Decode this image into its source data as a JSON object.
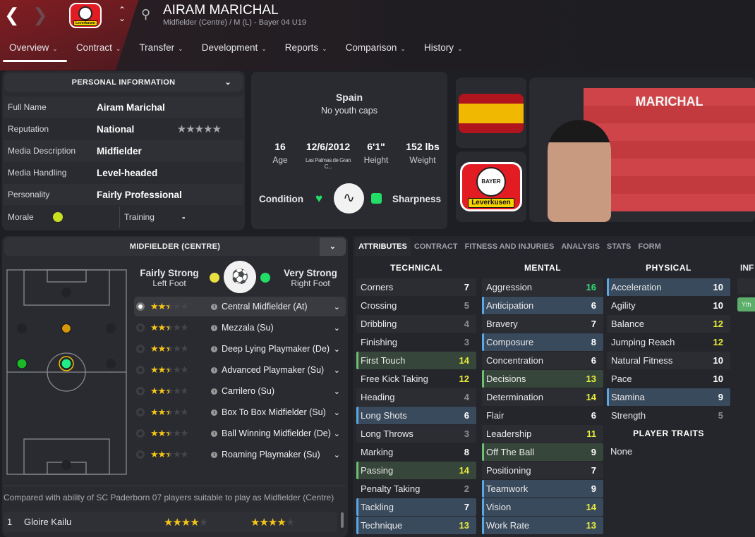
{
  "header": {
    "title": "AIRAM MARICHAL",
    "subtitle": "Midfielder (Centre) / M (L) - Bayer 04 U19",
    "back_icon": "chevron-left",
    "forward_icon": "chevron-right",
    "search_icon": "magnifier",
    "club_badge_text": "Leverkusen"
  },
  "tabs": [
    {
      "label": "Overview",
      "active": true
    },
    {
      "label": "Contract"
    },
    {
      "label": "Transfer"
    },
    {
      "label": "Development"
    },
    {
      "label": "Reports"
    },
    {
      "label": "Comparison"
    },
    {
      "label": "History"
    }
  ],
  "personal": {
    "title": "PERSONAL INFORMATION",
    "rows": [
      {
        "label": "Full Name",
        "value": "Airam Marichal"
      },
      {
        "label": "Reputation",
        "value": "National",
        "stars": 0
      },
      {
        "label": "Media Description",
        "value": "Midfielder"
      },
      {
        "label": "Media Handling",
        "value": "Level-headed"
      },
      {
        "label": "Personality",
        "value": "Fairly Professional"
      }
    ],
    "morale_label": "Morale",
    "training_label": "Training",
    "training_value": "-",
    "morale_color": "#c8e020"
  },
  "bio": {
    "nation": "Spain",
    "caps": "No youth caps",
    "age": "16",
    "age_label": "Age",
    "dob": "12/6/2012",
    "birthplace": "Las Palmas de Gran C...",
    "height": "6'1\"",
    "height_label": "Height",
    "weight": "152 lbs",
    "weight_label": "Weight",
    "condition_label": "Condition",
    "sharpness_label": "Sharpness"
  },
  "portrait": {
    "shirt_name": "MARICHAL",
    "crest_year": "1904",
    "crest_text": "BAYER",
    "crest_club": "Leverkusen"
  },
  "position": {
    "title": "MIDFIELDER (CENTRE)",
    "left_foot": "Fairly Strong",
    "left_foot_label": "Left Foot",
    "right_foot": "Very Strong",
    "right_foot_label": "Right Foot",
    "left_color": "#e8e040",
    "right_color": "#22dd66",
    "roles": [
      {
        "name": "Central Midfielder (At)",
        "stars": 2.5,
        "selected": true
      },
      {
        "name": "Mezzala (Su)",
        "stars": 2.5
      },
      {
        "name": "Deep Lying Playmaker (De)",
        "stars": 2.5
      },
      {
        "name": "Advanced Playmaker (Su)",
        "stars": 2.5
      },
      {
        "name": "Carrilero (Su)",
        "stars": 2.5
      },
      {
        "name": "Box To Box Midfielder (Su)",
        "stars": 2.5
      },
      {
        "name": "Ball Winning Midfielder (De)",
        "stars": 2.5
      },
      {
        "name": "Roaming Playmaker (Su)",
        "stars": 2.5
      }
    ],
    "compare_text": "Compared with ability of SC Paderborn 07 players suitable to play as Midfielder (Centre)",
    "compare_rows": [
      {
        "rank": "1",
        "name": "Gloire Kailu",
        "current": 4,
        "potential": 4
      }
    ]
  },
  "attr_tabs": [
    "ATTRIBUTES",
    "CONTRACT",
    "FITNESS AND INJURIES",
    "ANALYSIS",
    "STATS",
    "FORM"
  ],
  "attributes": {
    "technical": {
      "title": "TECHNICAL",
      "items": [
        {
          "name": "Corners",
          "value": 7
        },
        {
          "name": "Crossing",
          "value": 5
        },
        {
          "name": "Dribbling",
          "value": 4
        },
        {
          "name": "Finishing",
          "value": 3
        },
        {
          "name": "First Touch",
          "value": 14,
          "hl": "pref"
        },
        {
          "name": "Free Kick Taking",
          "value": 12
        },
        {
          "name": "Heading",
          "value": 4
        },
        {
          "name": "Long Shots",
          "value": 6,
          "hl": "key"
        },
        {
          "name": "Long Throws",
          "value": 3
        },
        {
          "name": "Marking",
          "value": 8
        },
        {
          "name": "Passing",
          "value": 14,
          "hl": "pref"
        },
        {
          "name": "Penalty Taking",
          "value": 2
        },
        {
          "name": "Tackling",
          "value": 7,
          "hl": "key"
        },
        {
          "name": "Technique",
          "value": 13,
          "hl": "key"
        }
      ]
    },
    "mental": {
      "title": "MENTAL",
      "items": [
        {
          "name": "Aggression",
          "value": 16
        },
        {
          "name": "Anticipation",
          "value": 6,
          "hl": "key"
        },
        {
          "name": "Bravery",
          "value": 7
        },
        {
          "name": "Composure",
          "value": 8,
          "hl": "key"
        },
        {
          "name": "Concentration",
          "value": 6
        },
        {
          "name": "Decisions",
          "value": 13,
          "hl": "pref"
        },
        {
          "name": "Determination",
          "value": 14
        },
        {
          "name": "Flair",
          "value": 6
        },
        {
          "name": "Leadership",
          "value": 11
        },
        {
          "name": "Off The Ball",
          "value": 9,
          "hl": "pref"
        },
        {
          "name": "Positioning",
          "value": 7
        },
        {
          "name": "Teamwork",
          "value": 9,
          "hl": "key"
        },
        {
          "name": "Vision",
          "value": 14,
          "hl": "key"
        },
        {
          "name": "Work Rate",
          "value": 13,
          "hl": "key"
        }
      ]
    },
    "physical": {
      "title": "PHYSICAL",
      "items": [
        {
          "name": "Acceleration",
          "value": 10,
          "hl": "key"
        },
        {
          "name": "Agility",
          "value": 10
        },
        {
          "name": "Balance",
          "value": 12
        },
        {
          "name": "Jumping Reach",
          "value": 12
        },
        {
          "name": "Natural Fitness",
          "value": 10
        },
        {
          "name": "Pace",
          "value": 10
        },
        {
          "name": "Stamina",
          "value": 9,
          "hl": "key"
        },
        {
          "name": "Strength",
          "value": 5
        }
      ]
    },
    "traits_title": "PLAYER TRAITS",
    "traits": "None",
    "info_title": "INF",
    "info_badge": "Yth"
  },
  "colors": {
    "high": "#2ee07a",
    "good": "#e8ec3a",
    "mid": "#ffffff",
    "low": "#8c8c90"
  }
}
